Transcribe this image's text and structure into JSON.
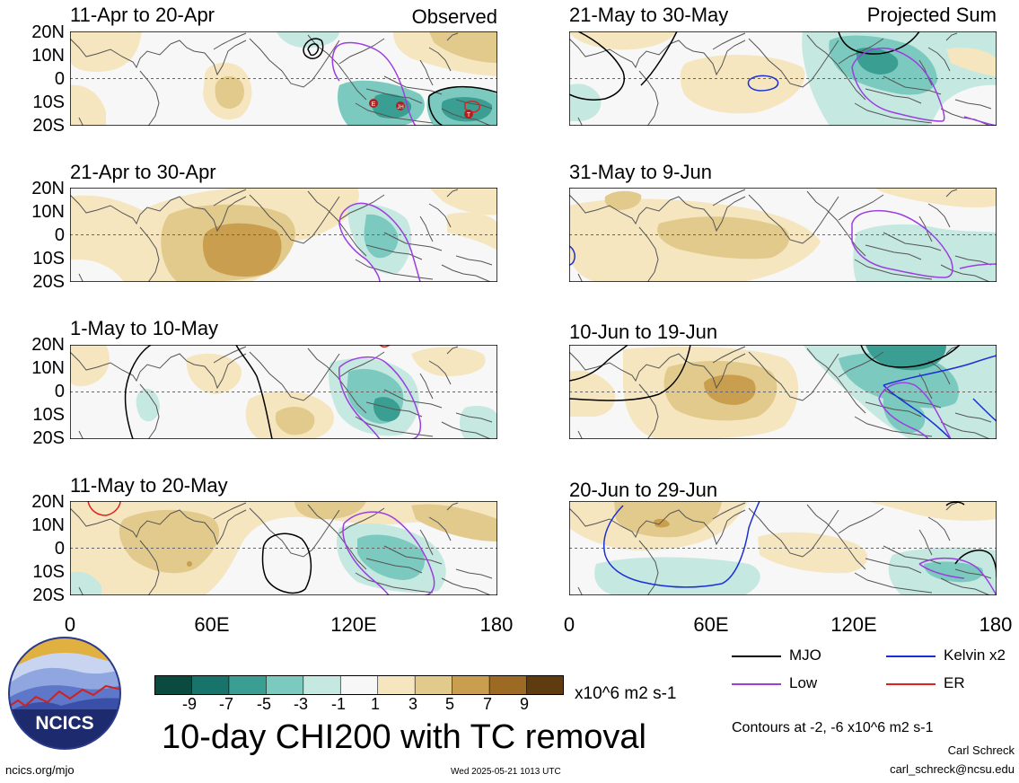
{
  "header": {
    "observed_label": "Observed",
    "projected_label": "Projected Sum"
  },
  "lat_labels": [
    "20N",
    "10N",
    "0",
    "10S",
    "20S"
  ],
  "lon_labels": [
    "0",
    "60E",
    "120E",
    "180"
  ],
  "panels": [
    {
      "title": "11-Apr to 20-Apr"
    },
    {
      "title": "21-Apr to 30-Apr"
    },
    {
      "title": "1-May to 10-May"
    },
    {
      "title": "11-May to 20-May"
    },
    {
      "title": "21-May to 30-May"
    },
    {
      "title": "31-May to 9-Jun"
    },
    {
      "title": "10-Jun to 19-Jun"
    },
    {
      "title": "20-Jun to 29-Jun"
    }
  ],
  "tc_markers": [
    "E",
    "JH",
    "T"
  ],
  "colorbar": {
    "ticks": [
      "-9",
      "-7",
      "-5",
      "-3",
      "-1",
      "1",
      "3",
      "5",
      "7",
      "9"
    ],
    "colors": [
      "#0b4a3f",
      "#18746a",
      "#3a9e93",
      "#7ccabf",
      "#c5e8e1",
      "#f7f7f7",
      "#f5e6bf",
      "#e2c98c",
      "#c99e4f",
      "#9c6a22",
      "#5e3c10"
    ],
    "units": "x10^6 m2 s-1"
  },
  "legend": {
    "items": [
      {
        "label": "MJO",
        "color": "#000000"
      },
      {
        "label": "Kelvin x2",
        "color": "#1a2fd6"
      },
      {
        "label": "Low",
        "color": "#9b3ee0"
      },
      {
        "label": "ER",
        "color": "#e0201e"
      }
    ],
    "contours_note": "Contours at -2, -6 x10^6 m2 s-1"
  },
  "footer": {
    "title": "10-day CHI200 with TC removal",
    "logo_text": "NCICS",
    "url": "ncics.org/mjo",
    "timestamp": "Wed 2025-05-21 1013 UTC",
    "author": "Carl Schreck",
    "email": "carl_schreck@ncsu.edu"
  }
}
